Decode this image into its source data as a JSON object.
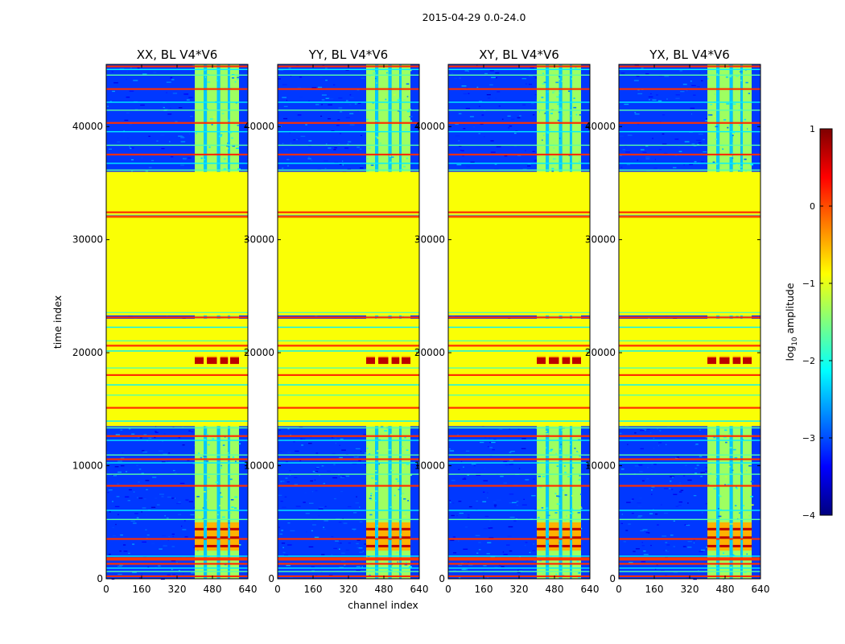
{
  "figure": {
    "suptitle": "2015-04-29 0.0-24.0",
    "xlabel": "channel index",
    "ylabel": "time index"
  },
  "chart_data": {
    "type": "heatmap",
    "x_range": [
      0,
      640
    ],
    "y_range": [
      0,
      45500
    ],
    "x_ticks": [
      0,
      160,
      320,
      480,
      640
    ],
    "y_ticks": [
      0,
      10000,
      20000,
      30000,
      40000
    ],
    "panels": [
      {
        "title": "XX, BL V4*V6",
        "pol": "XX"
      },
      {
        "title": "YY, BL V4*V6",
        "pol": "YY"
      },
      {
        "title": "XY, BL V4*V6",
        "pol": "XY"
      },
      {
        "title": "YX, BL V4*V6",
        "pol": "YX"
      }
    ],
    "colorbar": {
      "label": "log10 amplitude",
      "label_main": "log",
      "label_sub": "10",
      "label_rest": " amplitude",
      "range": [
        -4,
        1
      ],
      "ticks": [
        1,
        0,
        -1,
        -2,
        -3,
        -4
      ],
      "tick_labels": [
        "1",
        "0",
        "−1",
        "−2",
        "−3",
        "−4"
      ],
      "colormap": "jet",
      "colors": [
        "#00007f",
        "#0000ff",
        "#007fff",
        "#00ffff",
        "#7fff7f",
        "#ffff00",
        "#ff7f00",
        "#ff0000",
        "#7f0000"
      ]
    },
    "flagged_time_ranges": [
      [
        13500,
        23000
      ],
      [
        23300,
        36000
      ]
    ],
    "flagged_value": -0.9,
    "bright_channel_range": [
      400,
      600
    ],
    "rfi_time_ranges": [
      [
        19100,
        19700
      ],
      [
        2500,
        5000
      ]
    ]
  }
}
